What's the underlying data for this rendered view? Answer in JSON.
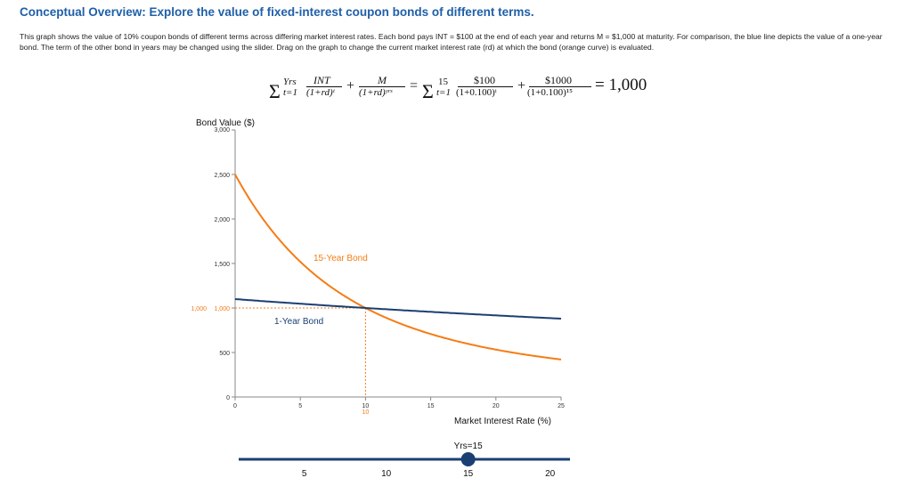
{
  "title": "Conceptual Overview: Explore the value of fixed-interest coupon bonds of different terms.",
  "description": "This graph shows the value of 10% coupon bonds of different terms across differing market interest rates. Each bond pays INT = $100 at the end of each year and returns M = $1,000 at maturity. For comparison, the blue line depicts the value of a one-year bond. The term of the other bond in years may be changed using the slider. Drag on the graph to change the current market interest rate (rd) at which the bond (orange curve) is evaluated.",
  "formula": {
    "sigma1": "Σ",
    "sup1": "Yrs",
    "sub1": "t=1",
    "num1": "INT",
    "den1": "(1+rd)ᵗ",
    "plus1": "+",
    "num2": "M",
    "den2": "(1+rd)ʸʳˢ",
    "eq1": "=",
    "sigma2": "Σ",
    "sup2": "15",
    "sub2": "t=1",
    "num3": "$100",
    "den3": "(1+0.100)ᵗ",
    "plus2": "+",
    "num4": "$1000",
    "den4": "(1+0.100)¹⁵",
    "result": "= 1,000"
  },
  "chart_data": {
    "type": "line",
    "ylabel": "Bond Value ($)",
    "xlabel": "Market Interest Rate (%)",
    "xlim": [
      0,
      25
    ],
    "ylim": [
      0,
      3000
    ],
    "x_ticks": [
      "0",
      "5",
      "10",
      "15",
      "20",
      "25"
    ],
    "y_ticks": [
      "0",
      "500",
      "1,000",
      "1,500",
      "2,000",
      "2,500",
      "3,000"
    ],
    "y_highlight_label": "1,000",
    "x_highlight_label": "10",
    "current_rate": 10,
    "current_value": 1000,
    "coupon": 100,
    "face_value": 1000,
    "series": [
      {
        "label": "15-Year Bond",
        "years": 15,
        "color": "#f57c14"
      },
      {
        "label": "1-Year Bond",
        "years": 1,
        "color": "#1b3f73"
      }
    ]
  },
  "slider": {
    "label": "Yrs=15",
    "value": 15,
    "min": 1,
    "max": 20,
    "ticks": [
      "5",
      "10",
      "15",
      "20"
    ]
  }
}
